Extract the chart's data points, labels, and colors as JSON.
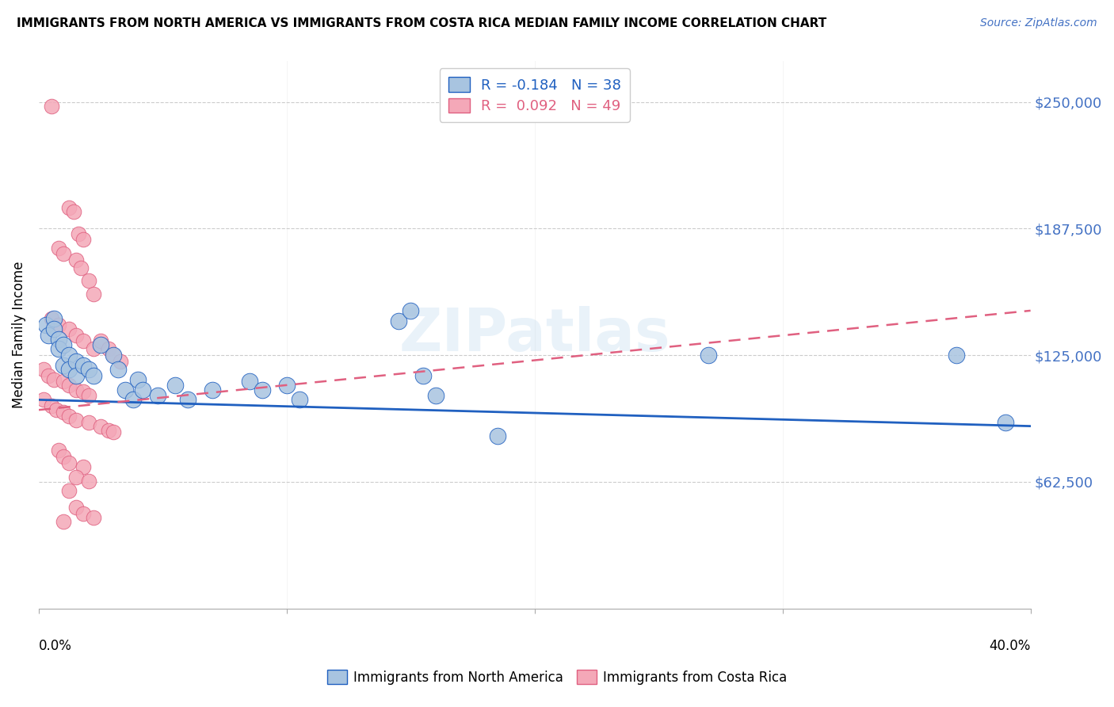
{
  "title": "IMMIGRANTS FROM NORTH AMERICA VS IMMIGRANTS FROM COSTA RICA MEDIAN FAMILY INCOME CORRELATION CHART",
  "source": "Source: ZipAtlas.com",
  "ylabel": "Median Family Income",
  "y_tick_labels": [
    "$62,500",
    "$125,000",
    "$187,500",
    "$250,000"
  ],
  "y_tick_values": [
    62500,
    125000,
    187500,
    250000
  ],
  "y_min": 0,
  "y_max": 270000,
  "x_min": 0.0,
  "x_max": 0.4,
  "legend_blue_r": "-0.184",
  "legend_blue_n": "38",
  "legend_pink_r": "0.092",
  "legend_pink_n": "49",
  "blue_color": "#a8c4e0",
  "pink_color": "#f4a8b8",
  "blue_line_color": "#2060c0",
  "pink_line_color": "#e06080",
  "blue_scatter": [
    [
      0.003,
      140000
    ],
    [
      0.004,
      135000
    ],
    [
      0.006,
      143000
    ],
    [
      0.006,
      138000
    ],
    [
      0.008,
      133000
    ],
    [
      0.008,
      128000
    ],
    [
      0.01,
      130000
    ],
    [
      0.01,
      120000
    ],
    [
      0.012,
      125000
    ],
    [
      0.012,
      118000
    ],
    [
      0.015,
      122000
    ],
    [
      0.015,
      115000
    ],
    [
      0.018,
      120000
    ],
    [
      0.02,
      118000
    ],
    [
      0.022,
      115000
    ],
    [
      0.025,
      130000
    ],
    [
      0.03,
      125000
    ],
    [
      0.032,
      118000
    ],
    [
      0.035,
      108000
    ],
    [
      0.038,
      103000
    ],
    [
      0.04,
      113000
    ],
    [
      0.042,
      108000
    ],
    [
      0.048,
      105000
    ],
    [
      0.055,
      110000
    ],
    [
      0.06,
      103000
    ],
    [
      0.07,
      108000
    ],
    [
      0.085,
      112000
    ],
    [
      0.09,
      108000
    ],
    [
      0.1,
      110000
    ],
    [
      0.105,
      103000
    ],
    [
      0.145,
      142000
    ],
    [
      0.15,
      147000
    ],
    [
      0.155,
      115000
    ],
    [
      0.16,
      105000
    ],
    [
      0.185,
      85000
    ],
    [
      0.27,
      125000
    ],
    [
      0.37,
      125000
    ],
    [
      0.39,
      92000
    ]
  ],
  "pink_scatter": [
    [
      0.005,
      248000
    ],
    [
      0.012,
      198000
    ],
    [
      0.014,
      196000
    ],
    [
      0.016,
      185000
    ],
    [
      0.018,
      182000
    ],
    [
      0.008,
      178000
    ],
    [
      0.01,
      175000
    ],
    [
      0.015,
      172000
    ],
    [
      0.017,
      168000
    ],
    [
      0.02,
      162000
    ],
    [
      0.022,
      155000
    ],
    [
      0.005,
      143000
    ],
    [
      0.008,
      140000
    ],
    [
      0.012,
      138000
    ],
    [
      0.015,
      135000
    ],
    [
      0.018,
      132000
    ],
    [
      0.022,
      128000
    ],
    [
      0.025,
      132000
    ],
    [
      0.028,
      128000
    ],
    [
      0.03,
      125000
    ],
    [
      0.033,
      122000
    ],
    [
      0.002,
      118000
    ],
    [
      0.004,
      115000
    ],
    [
      0.006,
      113000
    ],
    [
      0.01,
      112000
    ],
    [
      0.012,
      110000
    ],
    [
      0.015,
      108000
    ],
    [
      0.018,
      107000
    ],
    [
      0.02,
      105000
    ],
    [
      0.002,
      103000
    ],
    [
      0.005,
      100000
    ],
    [
      0.007,
      98000
    ],
    [
      0.01,
      97000
    ],
    [
      0.012,
      95000
    ],
    [
      0.015,
      93000
    ],
    [
      0.02,
      92000
    ],
    [
      0.025,
      90000
    ],
    [
      0.028,
      88000
    ],
    [
      0.03,
      87000
    ],
    [
      0.008,
      78000
    ],
    [
      0.01,
      75000
    ],
    [
      0.012,
      72000
    ],
    [
      0.018,
      70000
    ],
    [
      0.015,
      65000
    ],
    [
      0.02,
      63000
    ],
    [
      0.012,
      58000
    ],
    [
      0.015,
      50000
    ],
    [
      0.018,
      47000
    ],
    [
      0.022,
      45000
    ],
    [
      0.01,
      43000
    ]
  ]
}
